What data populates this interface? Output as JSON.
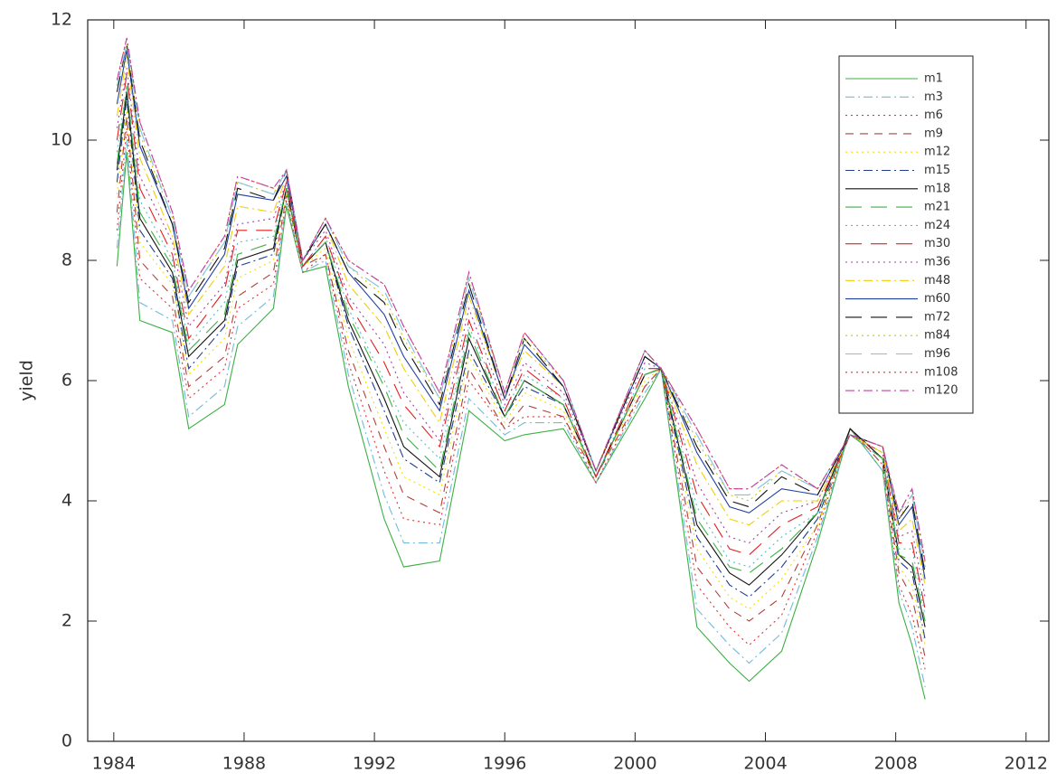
{
  "chart_data": {
    "type": "line",
    "y_label": "yield",
    "x": [
      1984.1,
      1984.4,
      1984.8,
      1985.8,
      1986.3,
      1987.4,
      1987.8,
      1988.9,
      1989.3,
      1989.8,
      1990.5,
      1991.2,
      1992.3,
      1992.9,
      1994.0,
      1994.9,
      1996.0,
      1996.6,
      1997.8,
      1998.8,
      2000.3,
      2000.8,
      2001.9,
      2002.9,
      2003.5,
      2004.5,
      2005.6,
      2006.6,
      2007.6,
      2008.1,
      2008.5,
      2008.9
    ],
    "xlim": [
      1983.2,
      2012.7
    ],
    "xticks": [
      1984,
      1988,
      1992,
      1996,
      2000,
      2004,
      2008,
      2012
    ],
    "ylim": [
      0,
      12
    ],
    "yticks": [
      0,
      2,
      4,
      6,
      8,
      10,
      12
    ],
    "series": [
      {
        "name": "m1",
        "color": "#3cb043",
        "dash": "solid",
        "values": [
          7.9,
          9.8,
          7.0,
          6.8,
          5.2,
          5.6,
          6.6,
          7.2,
          8.9,
          7.8,
          7.9,
          5.9,
          3.7,
          2.9,
          3.0,
          5.5,
          5.0,
          5.1,
          5.2,
          4.3,
          5.7,
          6.2,
          1.9,
          1.3,
          1.0,
          1.5,
          3.3,
          5.2,
          4.5,
          2.3,
          1.6,
          0.7
        ]
      },
      {
        "name": "m3",
        "color": "#6fbcdc",
        "dash": "dashdot",
        "values": [
          8.2,
          10.0,
          7.3,
          7.0,
          5.4,
          5.9,
          6.9,
          7.4,
          9.0,
          7.8,
          8.0,
          6.1,
          4.1,
          3.3,
          3.3,
          5.7,
          5.1,
          5.3,
          5.3,
          4.3,
          5.8,
          6.2,
          2.2,
          1.6,
          1.3,
          1.8,
          3.4,
          5.2,
          4.5,
          2.5,
          1.9,
          0.9
        ]
      },
      {
        "name": "m6",
        "color": "#e03030",
        "dash": "dotted",
        "values": [
          8.5,
          10.2,
          7.7,
          7.2,
          5.7,
          6.2,
          7.2,
          7.6,
          9.0,
          7.8,
          8.1,
          6.3,
          4.5,
          3.7,
          3.6,
          6.0,
          5.2,
          5.4,
          5.4,
          4.3,
          5.9,
          6.2,
          2.6,
          1.9,
          1.6,
          2.1,
          3.5,
          5.2,
          4.6,
          2.6,
          2.1,
          1.2
        ]
      },
      {
        "name": "m9",
        "color": "#b0403a",
        "dash": "dashed",
        "values": [
          8.8,
          10.4,
          8.0,
          7.4,
          5.9,
          6.4,
          7.4,
          7.8,
          9.1,
          7.9,
          8.1,
          6.5,
          4.9,
          4.1,
          3.8,
          6.2,
          5.2,
          5.6,
          5.4,
          4.4,
          5.9,
          6.2,
          2.9,
          2.2,
          2.0,
          2.4,
          3.6,
          5.2,
          4.6,
          2.8,
          2.4,
          1.4
        ]
      },
      {
        "name": "m12",
        "color": "#f0e000",
        "dash": "dotted",
        "values": [
          9.1,
          10.5,
          8.3,
          7.6,
          6.1,
          6.7,
          7.7,
          8.0,
          9.1,
          7.9,
          8.2,
          6.7,
          5.2,
          4.4,
          4.1,
          6.4,
          5.3,
          5.8,
          5.5,
          4.4,
          6.0,
          6.2,
          3.2,
          2.4,
          2.2,
          2.7,
          3.6,
          5.2,
          4.7,
          2.9,
          2.6,
          1.6
        ]
      },
      {
        "name": "m15",
        "color": "#1f3d8c",
        "dash": "dashdot",
        "values": [
          9.3,
          10.7,
          8.5,
          7.7,
          6.2,
          6.9,
          7.9,
          8.1,
          9.2,
          7.9,
          8.3,
          6.9,
          5.5,
          4.7,
          4.3,
          6.5,
          5.4,
          5.9,
          5.6,
          4.4,
          6.1,
          6.2,
          3.4,
          2.6,
          2.4,
          2.9,
          3.7,
          5.2,
          4.7,
          3.0,
          2.8,
          1.7
        ]
      },
      {
        "name": "m18",
        "color": "#111111",
        "dash": "solid",
        "values": [
          9.5,
          10.8,
          8.7,
          7.8,
          6.4,
          7.0,
          8.0,
          8.2,
          9.2,
          7.9,
          8.3,
          7.0,
          5.7,
          4.9,
          4.4,
          6.7,
          5.4,
          6.0,
          5.6,
          4.4,
          6.1,
          6.2,
          3.6,
          2.8,
          2.6,
          3.1,
          3.8,
          5.2,
          4.7,
          3.1,
          2.9,
          1.9
        ]
      },
      {
        "name": "m21",
        "color": "#3cb043",
        "dash": "longdash",
        "values": [
          9.6,
          10.9,
          8.8,
          7.9,
          6.5,
          7.1,
          8.1,
          8.3,
          9.2,
          7.9,
          8.3,
          7.1,
          5.9,
          5.1,
          4.5,
          6.8,
          5.4,
          6.0,
          5.6,
          4.4,
          6.1,
          6.2,
          3.7,
          2.9,
          2.8,
          3.2,
          3.8,
          5.1,
          4.7,
          3.1,
          3.0,
          2.0
        ]
      },
      {
        "name": "m24",
        "color": "#4fc0c0",
        "dash": "dotted",
        "values": [
          9.8,
          10.9,
          9.0,
          8.0,
          6.6,
          7.3,
          8.3,
          8.4,
          9.3,
          7.9,
          8.4,
          7.2,
          6.0,
          5.3,
          4.7,
          6.9,
          5.5,
          6.1,
          5.7,
          4.4,
          6.2,
          6.2,
          3.9,
          3.0,
          2.9,
          3.4,
          3.8,
          5.1,
          4.7,
          3.2,
          3.2,
          2.1
        ]
      },
      {
        "name": "m30",
        "color": "#e02020",
        "dash": "longdash",
        "values": [
          10.0,
          11.1,
          9.2,
          8.1,
          6.7,
          7.5,
          8.5,
          8.5,
          9.3,
          7.9,
          8.4,
          7.3,
          6.3,
          5.6,
          4.9,
          7.0,
          5.5,
          6.2,
          5.7,
          4.4,
          6.2,
          6.2,
          4.1,
          3.2,
          3.1,
          3.6,
          3.9,
          5.1,
          4.8,
          3.3,
          3.3,
          2.2
        ]
      },
      {
        "name": "m36",
        "color": "#a040a0",
        "dash": "dotted",
        "values": [
          10.2,
          11.2,
          9.4,
          8.3,
          6.9,
          7.6,
          8.6,
          8.7,
          9.3,
          8.0,
          8.5,
          7.4,
          6.6,
          5.8,
          5.0,
          7.2,
          5.6,
          6.3,
          5.8,
          4.5,
          6.3,
          6.2,
          4.3,
          3.4,
          3.3,
          3.8,
          4.0,
          5.1,
          4.8,
          3.4,
          3.5,
          2.4
        ]
      },
      {
        "name": "m48",
        "color": "#f0d000",
        "dash": "dashdot",
        "values": [
          10.4,
          11.4,
          9.7,
          8.4,
          7.1,
          7.9,
          8.9,
          8.8,
          9.4,
          8.0,
          8.6,
          7.6,
          6.9,
          6.2,
          5.3,
          7.4,
          5.7,
          6.5,
          5.9,
          4.5,
          6.4,
          6.2,
          4.6,
          3.7,
          3.6,
          4.0,
          4.0,
          5.1,
          4.8,
          3.5,
          3.7,
          2.6
        ]
      },
      {
        "name": "m60",
        "color": "#2040a0",
        "dash": "solid",
        "values": [
          10.6,
          11.5,
          9.9,
          8.6,
          7.2,
          8.1,
          9.1,
          9.0,
          9.4,
          8.0,
          8.6,
          7.8,
          7.1,
          6.4,
          5.5,
          7.5,
          5.7,
          6.6,
          5.9,
          4.5,
          6.4,
          6.2,
          4.8,
          3.9,
          3.8,
          4.2,
          4.1,
          5.1,
          4.9,
          3.6,
          3.9,
          2.7
        ]
      },
      {
        "name": "m72",
        "color": "#111111",
        "dash": "longdash",
        "values": [
          10.8,
          11.6,
          10.0,
          8.6,
          7.3,
          8.2,
          9.2,
          9.0,
          9.5,
          8.0,
          8.6,
          7.8,
          7.3,
          6.6,
          5.6,
          7.6,
          5.7,
          6.7,
          5.9,
          4.5,
          6.4,
          6.2,
          4.9,
          4.0,
          3.9,
          4.4,
          4.1,
          5.1,
          4.9,
          3.7,
          4.0,
          2.8
        ]
      },
      {
        "name": "m84",
        "color": "#c8c800",
        "dash": "dotted",
        "values": [
          10.9,
          11.6,
          10.1,
          8.7,
          7.4,
          8.3,
          9.3,
          9.1,
          9.5,
          8.0,
          8.7,
          7.9,
          7.4,
          6.7,
          5.7,
          7.7,
          5.8,
          6.7,
          6.0,
          4.5,
          6.5,
          6.2,
          5.0,
          4.1,
          4.0,
          4.5,
          4.2,
          5.1,
          4.9,
          3.7,
          4.1,
          2.9
        ]
      },
      {
        "name": "m96",
        "color": "#80c0e0",
        "dash": "longdash",
        "values": [
          10.9,
          11.6,
          10.2,
          8.7,
          7.4,
          8.3,
          9.3,
          9.1,
          9.5,
          8.0,
          8.7,
          7.9,
          7.5,
          6.8,
          5.7,
          7.7,
          5.8,
          6.8,
          6.0,
          4.5,
          6.5,
          6.2,
          5.1,
          4.1,
          4.1,
          4.5,
          4.2,
          5.1,
          4.9,
          3.8,
          4.1,
          2.9
        ]
      },
      {
        "name": "m108",
        "color": "#e03030",
        "dash": "dotted",
        "values": [
          11.0,
          11.7,
          10.3,
          8.8,
          7.5,
          8.4,
          9.4,
          9.2,
          9.5,
          8.0,
          8.7,
          8.0,
          7.6,
          6.9,
          5.8,
          7.8,
          5.8,
          6.8,
          6.0,
          4.5,
          6.5,
          6.2,
          5.2,
          4.2,
          4.2,
          4.6,
          4.2,
          5.1,
          4.9,
          3.8,
          4.2,
          3.0
        ]
      },
      {
        "name": "m120",
        "color": "#c040a0",
        "dash": "dashdot",
        "values": [
          11.0,
          11.7,
          10.3,
          8.8,
          7.5,
          8.4,
          9.4,
          9.2,
          9.5,
          8.0,
          8.7,
          8.0,
          7.6,
          6.9,
          5.8,
          7.8,
          5.8,
          6.8,
          6.0,
          4.5,
          6.5,
          6.2,
          5.2,
          4.2,
          4.2,
          4.6,
          4.2,
          5.1,
          4.9,
          3.8,
          4.2,
          3.0
        ]
      }
    ]
  }
}
